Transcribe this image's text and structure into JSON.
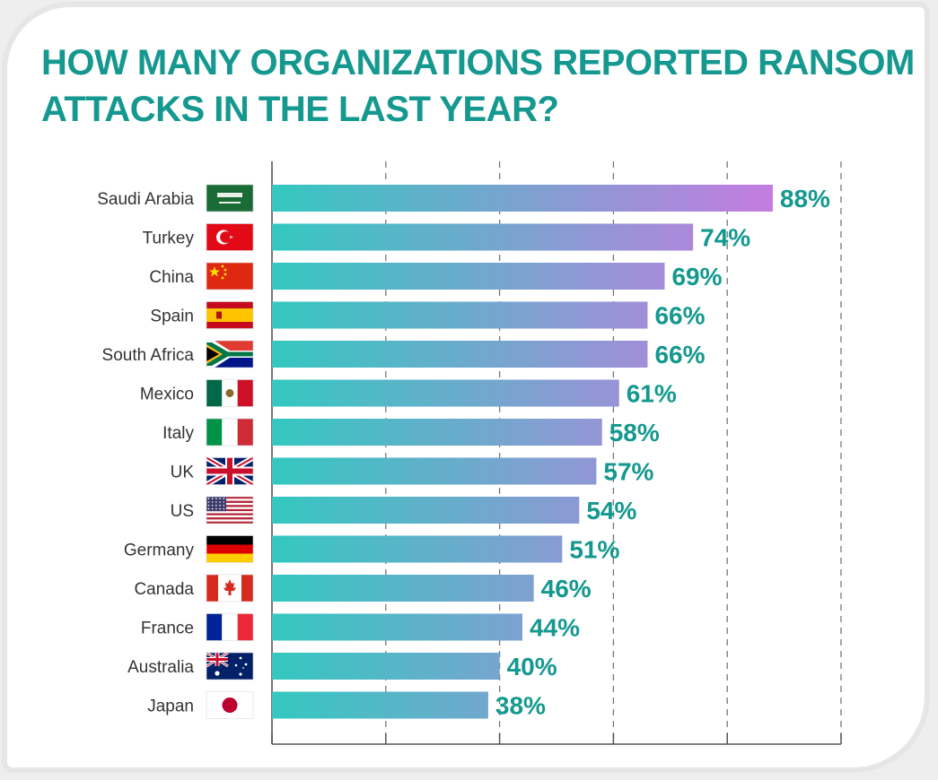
{
  "title": "HOW MANY ORGANIZATIONS REPORTED RANSOM ATTACKS IN THE LAST YEAR?",
  "colors": {
    "title": "#14988f",
    "bar_start": "#33c8c0",
    "bar_end": "#c47ce0",
    "value_label": "#14988f"
  },
  "chart_data": {
    "type": "bar",
    "orientation": "horizontal",
    "title": "HOW MANY ORGANIZATIONS REPORTED RANSOM ATTACKS IN THE LAST YEAR?",
    "xlabel": "",
    "ylabel": "",
    "xlim": [
      0,
      100
    ],
    "grid": true,
    "legend": "none",
    "value_suffix": "%",
    "categories": [
      "Saudi Arabia",
      "Turkey",
      "China",
      "Spain",
      "South Africa",
      "Mexico",
      "Italy",
      "UK",
      "US",
      "Germany",
      "Canada",
      "France",
      "Australia",
      "Japan"
    ],
    "values": [
      88,
      74,
      69,
      66,
      66,
      61,
      58,
      57,
      54,
      51,
      46,
      44,
      40,
      38
    ],
    "flags": [
      "saudi-arabia-flag",
      "turkey-flag",
      "china-flag",
      "spain-flag",
      "south-africa-flag",
      "mexico-flag",
      "italy-flag",
      "uk-flag",
      "us-flag",
      "germany-flag",
      "canada-flag",
      "france-flag",
      "australia-flag",
      "japan-flag"
    ]
  }
}
